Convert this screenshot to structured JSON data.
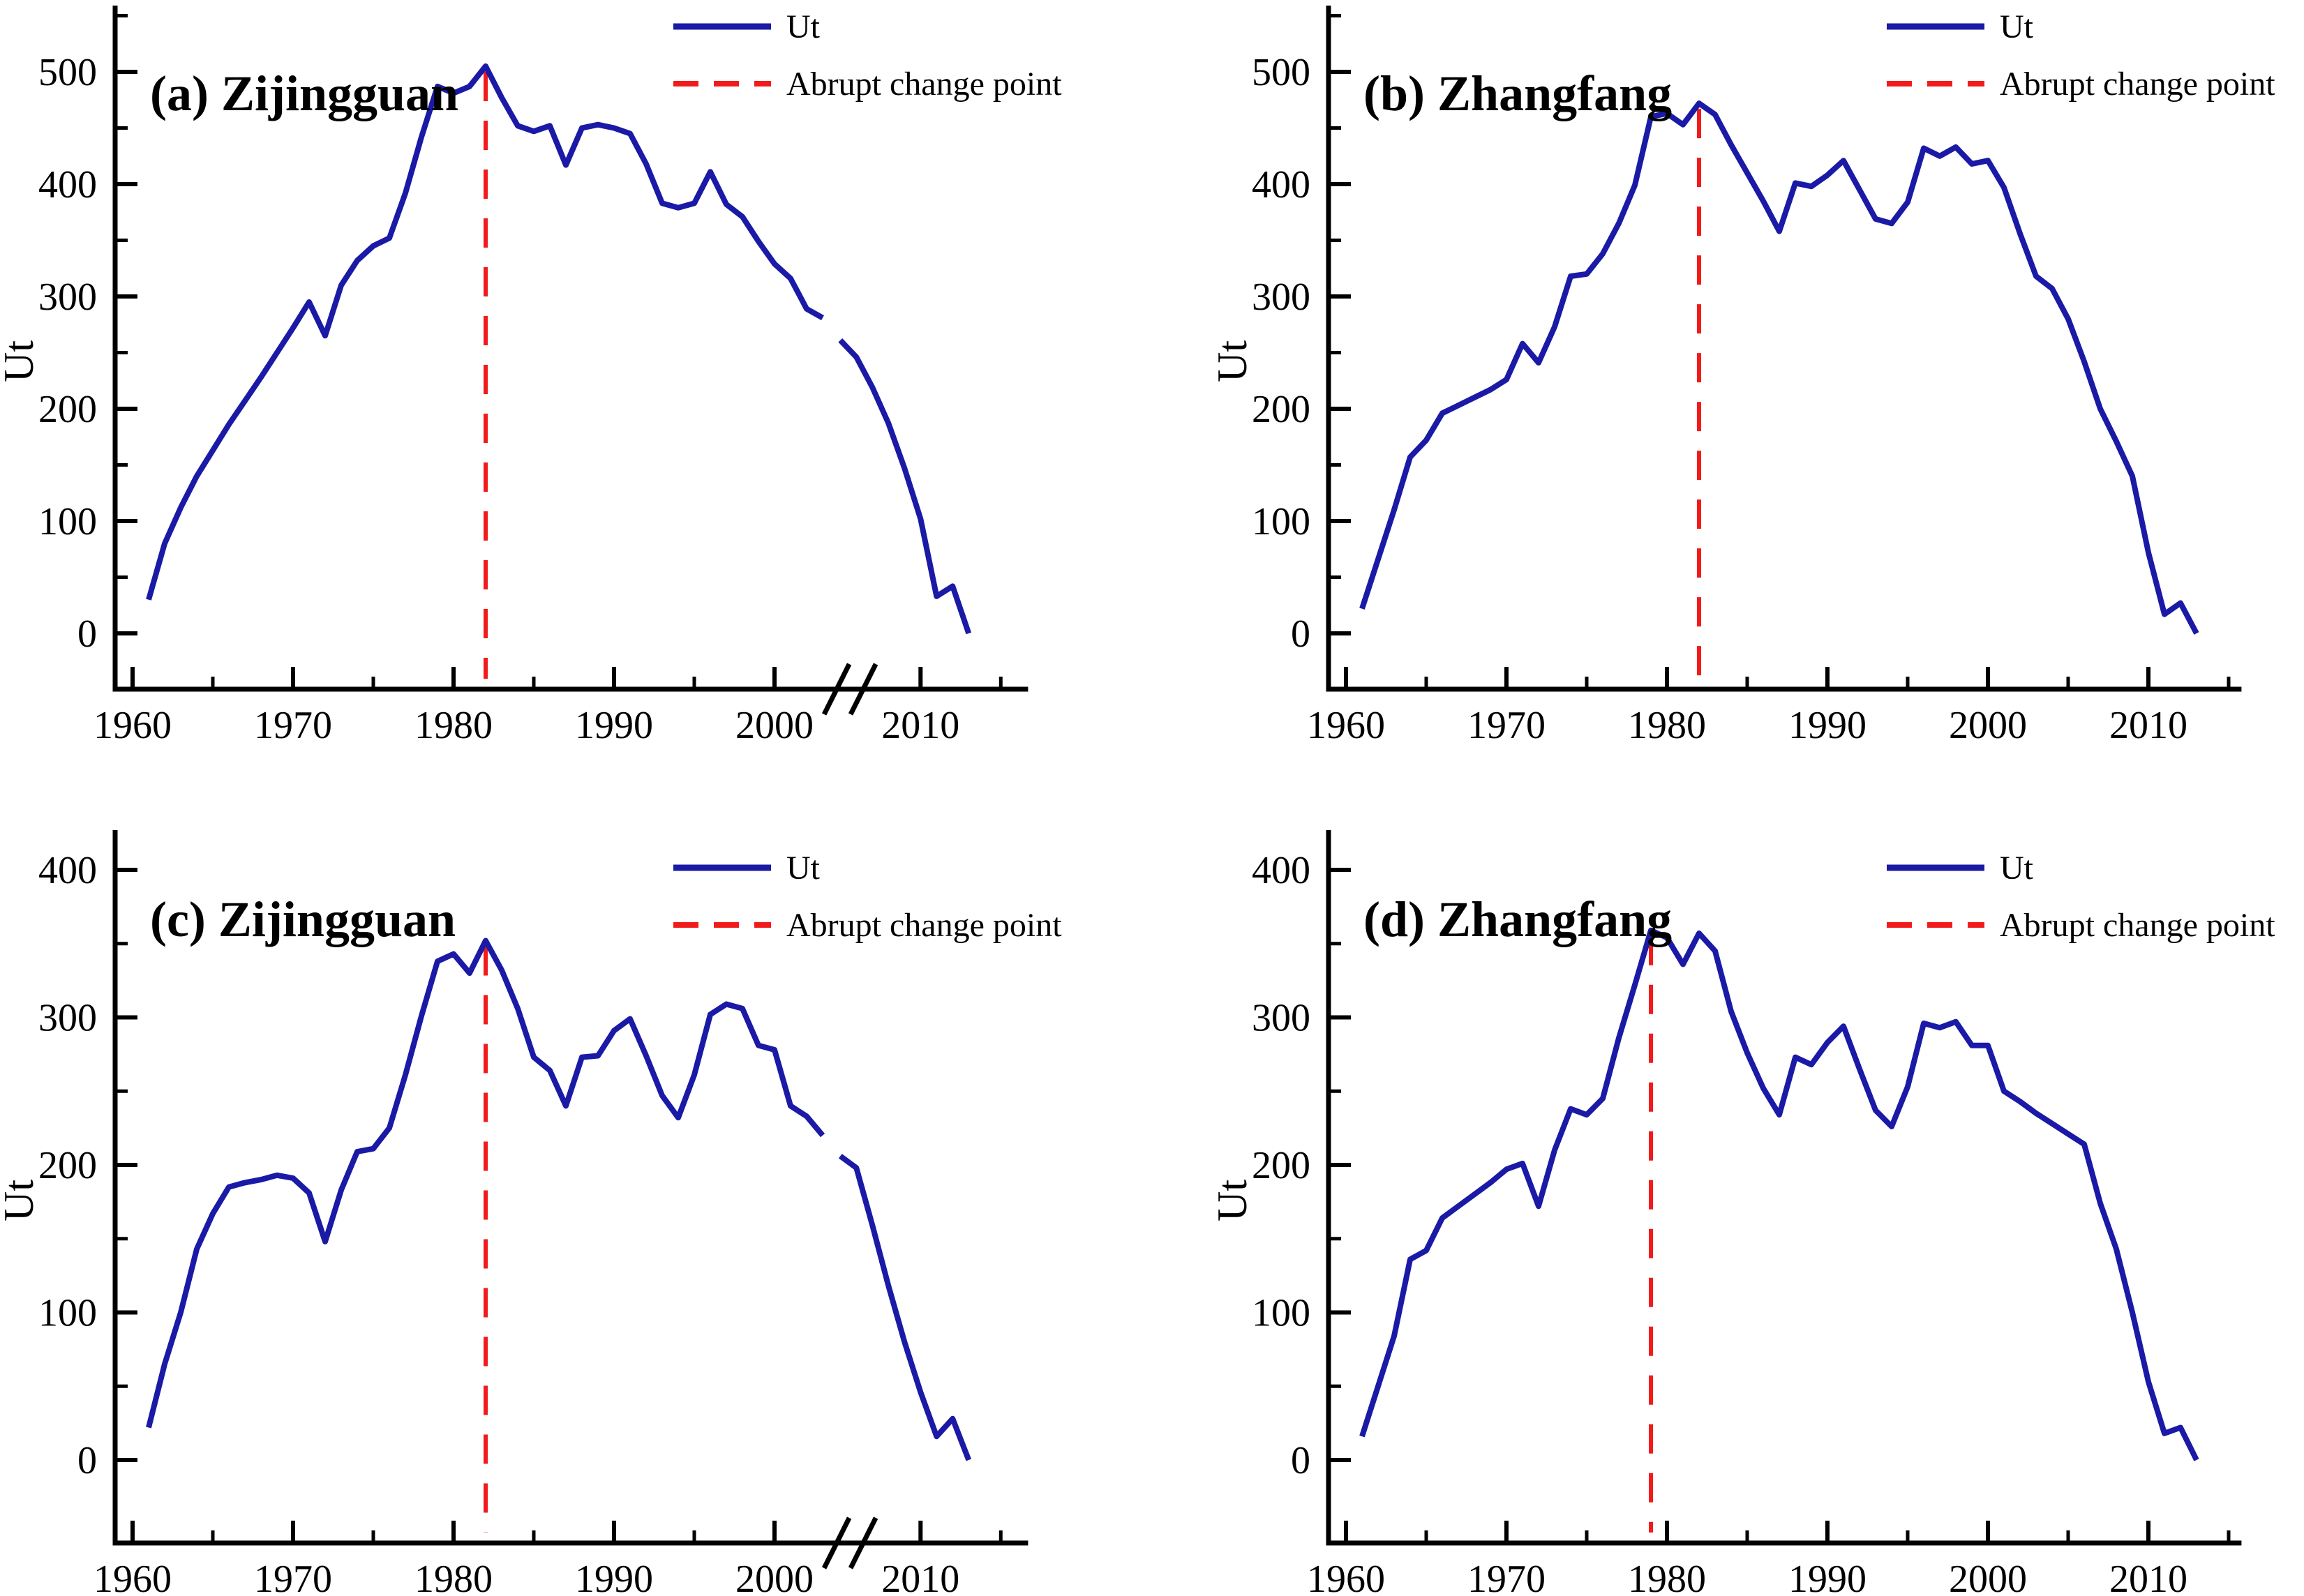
{
  "figure": {
    "background": "#ffffff",
    "description_visible_text_only": true
  },
  "colors": {
    "ut_line": "#1a1aa6",
    "change_point_line": "#f21b1b",
    "axis": "#000000",
    "text": "#000000"
  },
  "legend_labels": {
    "ut": "Ut",
    "change_point": "Abrupt change point"
  },
  "chart_data": [
    {
      "id": "a",
      "type": "line",
      "title": "(a) Zijingguan",
      "ylabel": "Ut",
      "ylim": [
        0,
        500
      ],
      "yticks": [
        0,
        100,
        200,
        300,
        400,
        500
      ],
      "ytick_minor_step": 50,
      "xlim": [
        1960,
        2015
      ],
      "xticks": [
        1960,
        1970,
        1980,
        1990,
        2000,
        2010
      ],
      "xticks_minor": [
        1965,
        1975,
        1985,
        1995,
        2015
      ],
      "axis_break_x": 2003.7,
      "legend": [
        "Ut",
        "Abrupt change point"
      ],
      "legend_position": "top-right",
      "change_point_year": 1982,
      "year_start": 1961,
      "values": [
        30,
        80,
        112,
        140,
        163,
        186,
        207,
        228,
        250,
        272,
        295,
        265,
        310,
        332,
        345,
        352,
        392,
        442,
        487,
        481,
        487,
        505,
        477,
        452,
        447,
        452,
        417,
        450,
        453,
        450,
        445,
        418,
        383,
        379,
        383,
        411,
        382,
        371,
        349,
        329,
        316,
        289,
        281,
        null,
        261,
        246,
        219,
        187,
        147,
        102,
        33,
        42,
        0
      ]
    },
    {
      "id": "b",
      "type": "line",
      "title": "(b) Zhangfang",
      "ylabel": "Ut",
      "ylim": [
        0,
        500
      ],
      "yticks": [
        0,
        100,
        200,
        300,
        400,
        500
      ],
      "ytick_minor_step": 50,
      "xlim": [
        1960,
        2015
      ],
      "xticks": [
        1960,
        1970,
        1980,
        1990,
        2000,
        2010
      ],
      "xticks_minor": [
        1965,
        1975,
        1985,
        1995,
        2005,
        2015
      ],
      "axis_break_x": null,
      "legend": [
        "Ut",
        "Abrupt change point"
      ],
      "legend_position": "top-right",
      "change_point_year": 1982,
      "year_start": 1961,
      "values": [
        22,
        66,
        110,
        157,
        172,
        196,
        203,
        210,
        217,
        226,
        258,
        241,
        273,
        318,
        320,
        338,
        365,
        399,
        460,
        463,
        453,
        472,
        462,
        435,
        410,
        385,
        358,
        401,
        398,
        408,
        421,
        395,
        369,
        365,
        384,
        432,
        425,
        433,
        418,
        421,
        397,
        356,
        318,
        307,
        280,
        242,
        200,
        171,
        140,
        72,
        17,
        27,
        0
      ]
    },
    {
      "id": "c",
      "type": "line",
      "title": "(c) Zijingguan",
      "ylabel": "Ut",
      "ylim": [
        0,
        400
      ],
      "yticks": [
        0,
        100,
        200,
        300,
        400
      ],
      "ytick_minor_step": 50,
      "xlim": [
        1960,
        2015
      ],
      "xticks": [
        1960,
        1970,
        1980,
        1990,
        2000,
        2010
      ],
      "xticks_minor": [
        1965,
        1975,
        1985,
        1995,
        2015
      ],
      "axis_break_x": 2003.7,
      "legend": [
        "Ut",
        "Abrupt change point"
      ],
      "legend_position": "top-right",
      "change_point_year": 1982,
      "year_start": 1961,
      "values": [
        22,
        65,
        100,
        143,
        167,
        185,
        188,
        190,
        193,
        191,
        181,
        148,
        183,
        209,
        211,
        225,
        261,
        301,
        338,
        343,
        330,
        352,
        332,
        306,
        273,
        264,
        240,
        273,
        274,
        291,
        299,
        274,
        247,
        232,
        261,
        302,
        309,
        306,
        281,
        278,
        240,
        233,
        220,
        null,
        206,
        198,
        159,
        118,
        80,
        46,
        16,
        28,
        0
      ]
    },
    {
      "id": "d",
      "type": "line",
      "title": "(d) Zhangfang",
      "ylabel": "Ut",
      "ylim": [
        0,
        400
      ],
      "yticks": [
        0,
        100,
        200,
        300,
        400
      ],
      "ytick_minor_step": 50,
      "xlim": [
        1960,
        2015
      ],
      "xticks": [
        1960,
        1970,
        1980,
        1990,
        2000,
        2010
      ],
      "xticks_minor": [
        1965,
        1975,
        1985,
        1995,
        2005,
        2015
      ],
      "axis_break_x": null,
      "legend": [
        "Ut",
        "Abrupt change point"
      ],
      "legend_position": "top-right",
      "change_point_year": 1979,
      "year_start": 1961,
      "values": [
        16,
        50,
        84,
        136,
        142,
        164,
        172,
        180,
        188,
        197,
        201,
        172,
        210,
        238,
        234,
        245,
        286,
        322,
        359,
        354,
        336,
        357,
        345,
        304,
        276,
        252,
        234,
        273,
        268,
        283,
        294,
        265,
        237,
        226,
        253,
        296,
        293,
        297,
        281,
        281,
        250,
        243,
        235,
        228,
        221,
        214,
        174,
        143,
        100,
        53,
        18,
        22,
        0
      ]
    }
  ]
}
